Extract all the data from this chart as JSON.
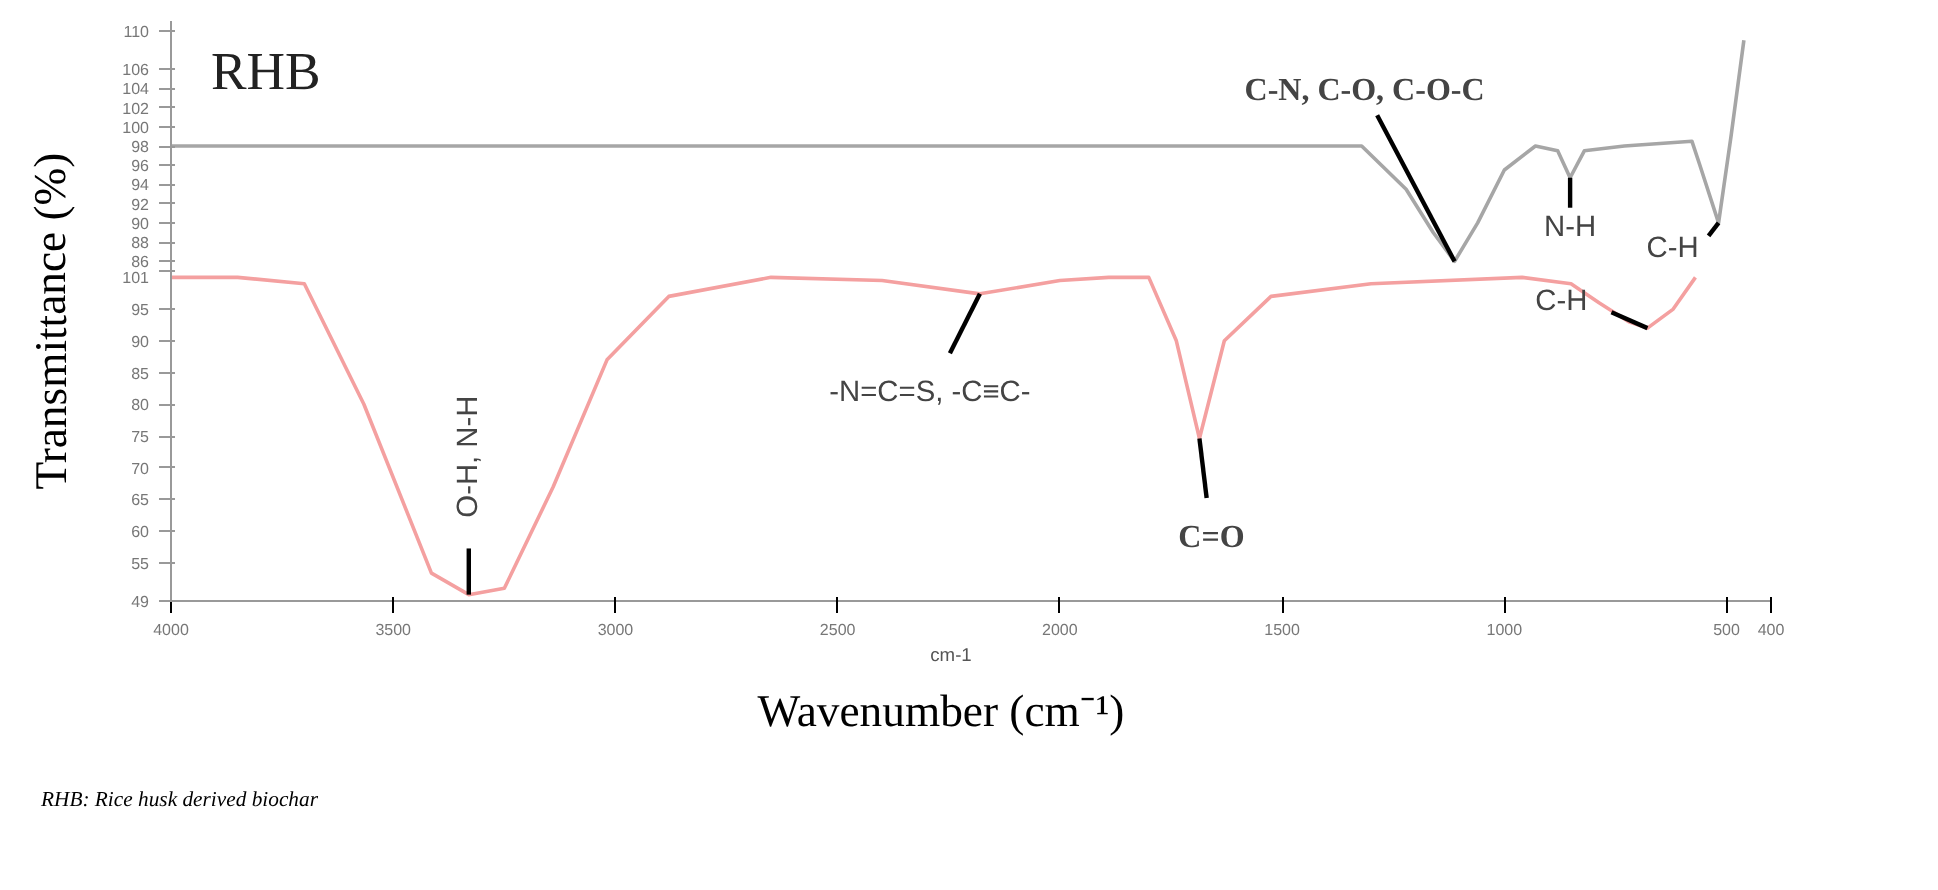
{
  "chart_data": [
    {
      "type": "line",
      "xlim": [
        4000,
        400
      ],
      "ylim": [
        85,
        111
      ],
      "yticks": [
        86,
        88,
        90,
        92,
        94,
        96,
        98,
        100,
        102,
        104,
        106,
        110
      ],
      "tick_labels": "y",
      "ylabel": "Transmittance (%)",
      "grid": false,
      "series": [
        {
          "name": "RHB",
          "color": "#a6a6a6",
          "x": [
            4000,
            3000,
            2000,
            1500,
            1321,
            1221,
            1160,
            1112,
            1060,
            1000,
            930,
            880,
            852,
            820,
            730,
            578,
            560,
            518,
            490,
            461
          ],
          "values": [
            98,
            98,
            98,
            98,
            98,
            93.5,
            89,
            86,
            90,
            95.5,
            98,
            97.5,
            94.7,
            97.5,
            98,
            98.5,
            96,
            90,
            99,
            109
          ]
        }
      ],
      "annotations": [
        {
          "text": "C-N, C-O, C-O-C",
          "x": 1112,
          "y": 86
        },
        {
          "text": "N-H",
          "x": 852,
          "y": 94.7
        },
        {
          "text": "C-H",
          "x": 518,
          "y": 90
        }
      ]
    },
    {
      "type": "line",
      "xlim": [
        4000,
        400
      ],
      "ylim": [
        49,
        101
      ],
      "yticks": [
        49,
        55,
        60,
        65,
        70,
        75,
        80,
        85,
        90,
        95,
        101
      ],
      "xticks": [
        4000,
        3500,
        3000,
        2500,
        2000,
        1500,
        1000,
        500,
        400
      ],
      "xlabel": "Wavenumber (cm⁻¹)",
      "grid": false,
      "series": [
        {
          "color": "#f4a0a0",
          "x": [
            4000,
            3850,
            3700,
            3566,
            3414,
            3330,
            3250,
            3140,
            3019,
            2880,
            2650,
            2400,
            2180,
            2000,
            1890,
            1800,
            1738,
            1686,
            1630,
            1525,
            1300,
            960,
            850,
            787,
            720,
            678,
            620,
            570
          ],
          "values": [
            100,
            100,
            99,
            80,
            53.4,
            50,
            51,
            67,
            87,
            97,
            100,
            99.5,
            97.4,
            99.5,
            100,
            100,
            90,
            74.6,
            90,
            97,
            99,
            100,
            99,
            96,
            93,
            92,
            95,
            100
          ]
        }
      ],
      "annotations": [
        {
          "text": "O-H, N-H",
          "x": 3330,
          "y": 50
        },
        {
          "text": "-N=C=S, -C≡C-",
          "x": 2180,
          "y": 97.4
        },
        {
          "text": "C=O",
          "x": 1686,
          "y": 74.6
        },
        {
          "text": "C-H",
          "x": 678,
          "y": 92
        },
        "cm-1",
        "RHB: Rice husk derived biochar"
      ]
    }
  ]
}
